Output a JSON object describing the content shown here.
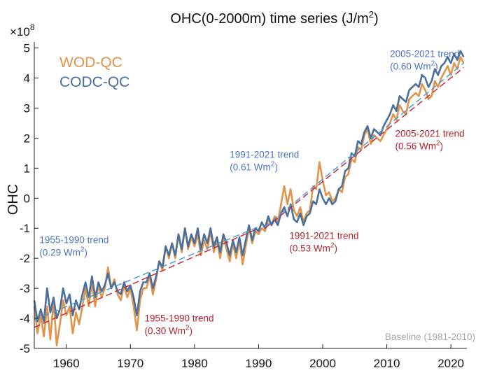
{
  "chart_data": {
    "type": "line",
    "title": "OHC(0-2000m) time series (J/m²)",
    "title_main": "OHC(0-2000m) time series (J/m",
    "title_sup": "2",
    "title_close": ")",
    "ylabel": "OHC",
    "xlabel": "",
    "y_scale_prefix": "×10",
    "y_scale_exp": "8",
    "xlim": [
      1955,
      2022.5
    ],
    "ylim": [
      -5,
      5.2
    ],
    "x_ticks": [
      1960,
      1970,
      1980,
      1990,
      2000,
      2010,
      2020
    ],
    "y_ticks": [
      -5,
      -4,
      -3,
      -2,
      -1,
      0,
      1,
      2,
      3,
      4,
      5
    ],
    "grid": false,
    "legend_position": "top-left",
    "baseline_note": "Baseline (1981-2010)",
    "series": [
      {
        "name": "WOD-QC",
        "color": "#e0954a",
        "points": [
          [
            1955.0,
            -3.6
          ],
          [
            1955.5,
            -4.5
          ],
          [
            1956.0,
            -3.9
          ],
          [
            1956.5,
            -4.6
          ],
          [
            1957.0,
            -3.6
          ],
          [
            1957.5,
            -4.7
          ],
          [
            1958.0,
            -3.4
          ],
          [
            1958.5,
            -4.9
          ],
          [
            1959.0,
            -4.2
          ],
          [
            1959.5,
            -3.4
          ],
          [
            1960.0,
            -3.9
          ],
          [
            1960.5,
            -3.6
          ],
          [
            1961.0,
            -4.5
          ],
          [
            1961.5,
            -3.8
          ],
          [
            1962.0,
            -4.2
          ],
          [
            1962.5,
            -3.6
          ],
          [
            1963.0,
            -3.0
          ],
          [
            1963.5,
            -3.6
          ],
          [
            1964.0,
            -2.8
          ],
          [
            1964.5,
            -3.6
          ],
          [
            1965.0,
            -2.9
          ],
          [
            1965.5,
            -3.3
          ],
          [
            1966.0,
            -3.0
          ],
          [
            1966.5,
            -2.3
          ],
          [
            1967.0,
            -3.0
          ],
          [
            1967.5,
            -2.7
          ],
          [
            1968.0,
            -3.2
          ],
          [
            1968.5,
            -3.4
          ],
          [
            1969.0,
            -2.9
          ],
          [
            1969.5,
            -3.3
          ],
          [
            1970.0,
            -3.0
          ],
          [
            1970.5,
            -3.6
          ],
          [
            1971.0,
            -4.4
          ],
          [
            1971.5,
            -3.4
          ],
          [
            1972.0,
            -3.0
          ],
          [
            1972.5,
            -3.0
          ],
          [
            1973.0,
            -2.6
          ],
          [
            1973.5,
            -3.2
          ],
          [
            1974.0,
            -2.7
          ],
          [
            1974.5,
            -2.1
          ],
          [
            1975.0,
            -2.4
          ],
          [
            1975.5,
            -1.6
          ],
          [
            1976.0,
            -2.0
          ],
          [
            1976.5,
            -1.5
          ],
          [
            1977.0,
            -2.0
          ],
          [
            1977.5,
            -1.2
          ],
          [
            1978.0,
            -1.8
          ],
          [
            1978.5,
            -1.0
          ],
          [
            1979.0,
            -1.7
          ],
          [
            1979.5,
            -1.3
          ],
          [
            1980.0,
            -1.6
          ],
          [
            1980.5,
            -1.2
          ],
          [
            1981.0,
            -1.9
          ],
          [
            1981.5,
            -1.4
          ],
          [
            1982.0,
            -1.7
          ],
          [
            1982.5,
            -1.1
          ],
          [
            1983.0,
            -1.8
          ],
          [
            1983.5,
            -1.4
          ],
          [
            1984.0,
            -2.0
          ],
          [
            1984.5,
            -1.3
          ],
          [
            1985.0,
            -1.7
          ],
          [
            1985.5,
            -2.1
          ],
          [
            1986.0,
            -1.5
          ],
          [
            1986.5,
            -2.0
          ],
          [
            1987.0,
            -1.4
          ],
          [
            1987.5,
            -2.2
          ],
          [
            1988.0,
            -1.6
          ],
          [
            1988.5,
            -1.0
          ],
          [
            1989.0,
            -1.5
          ],
          [
            1989.5,
            -1.1
          ],
          [
            1990.0,
            -1.2
          ],
          [
            1990.5,
            -1.0
          ],
          [
            1991.0,
            -1.1
          ],
          [
            1991.5,
            -0.7
          ],
          [
            1992.0,
            -0.9
          ],
          [
            1992.5,
            -0.6
          ],
          [
            1993.0,
            -0.8
          ],
          [
            1993.5,
            -0.2
          ],
          [
            1994.0,
            0.4
          ],
          [
            1994.5,
            -0.2
          ],
          [
            1995.0,
            0.3
          ],
          [
            1995.5,
            -0.4
          ],
          [
            1996.0,
            -0.6
          ],
          [
            1996.5,
            -0.3
          ],
          [
            1997.0,
            -0.8
          ],
          [
            1997.5,
            -0.5
          ],
          [
            1998.0,
            -0.4
          ],
          [
            1998.5,
            0.4
          ],
          [
            1999.0,
            0.3
          ],
          [
            1999.5,
            1.2
          ],
          [
            2000.0,
            0.6
          ],
          [
            2000.5,
            0.1
          ],
          [
            2001.0,
            0.2
          ],
          [
            2001.5,
            -0.1
          ],
          [
            2002.0,
            0.0
          ],
          [
            2002.5,
            0.3
          ],
          [
            2003.0,
            0.2
          ],
          [
            2003.5,
            0.7
          ],
          [
            2004.0,
            0.8
          ],
          [
            2004.5,
            1.3
          ],
          [
            2005.0,
            1.2
          ],
          [
            2005.5,
            1.7
          ],
          [
            2006.0,
            1.6
          ],
          [
            2006.5,
            2.1
          ],
          [
            2007.0,
            2.3
          ],
          [
            2007.5,
            1.8
          ],
          [
            2008.0,
            2.1
          ],
          [
            2008.5,
            2.0
          ],
          [
            2009.0,
            1.9
          ],
          [
            2009.5,
            2.1
          ],
          [
            2010.0,
            2.3
          ],
          [
            2010.5,
            2.5
          ],
          [
            2011.0,
            2.8
          ],
          [
            2011.5,
            2.6
          ],
          [
            2012.0,
            3.1
          ],
          [
            2012.5,
            2.9
          ],
          [
            2013.0,
            2.8
          ],
          [
            2013.5,
            3.3
          ],
          [
            2014.0,
            3.4
          ],
          [
            2014.5,
            3.5
          ],
          [
            2015.0,
            3.4
          ],
          [
            2015.5,
            3.8
          ],
          [
            2016.0,
            3.6
          ],
          [
            2016.5,
            3.3
          ],
          [
            2017.0,
            3.4
          ],
          [
            2017.5,
            3.9
          ],
          [
            2018.0,
            3.7
          ],
          [
            2018.5,
            4.0
          ],
          [
            2019.0,
            4.2
          ],
          [
            2019.5,
            4.4
          ],
          [
            2020.0,
            4.1
          ],
          [
            2020.5,
            4.5
          ],
          [
            2021.0,
            4.3
          ],
          [
            2021.5,
            4.7
          ],
          [
            2022.0,
            4.5
          ]
        ]
      },
      {
        "name": "CODC-QC",
        "color": "#4a6f9e",
        "points": [
          [
            1955.0,
            -3.4
          ],
          [
            1955.5,
            -4.1
          ],
          [
            1956.0,
            -3.7
          ],
          [
            1956.5,
            -4.1
          ],
          [
            1957.0,
            -3.0
          ],
          [
            1957.5,
            -3.8
          ],
          [
            1958.0,
            -3.3
          ],
          [
            1958.5,
            -4.0
          ],
          [
            1959.0,
            -3.7
          ],
          [
            1959.5,
            -3.0
          ],
          [
            1960.0,
            -3.5
          ],
          [
            1960.5,
            -3.2
          ],
          [
            1961.0,
            -3.9
          ],
          [
            1961.5,
            -3.4
          ],
          [
            1962.0,
            -3.7
          ],
          [
            1962.5,
            -3.2
          ],
          [
            1963.0,
            -2.8
          ],
          [
            1963.5,
            -3.3
          ],
          [
            1964.0,
            -2.6
          ],
          [
            1964.5,
            -3.3
          ],
          [
            1965.0,
            -2.8
          ],
          [
            1965.5,
            -3.1
          ],
          [
            1966.0,
            -2.9
          ],
          [
            1966.5,
            -2.5
          ],
          [
            1967.0,
            -3.0
          ],
          [
            1967.5,
            -2.8
          ],
          [
            1968.0,
            -3.1
          ],
          [
            1968.5,
            -3.2
          ],
          [
            1969.0,
            -2.8
          ],
          [
            1969.5,
            -3.1
          ],
          [
            1970.0,
            -2.9
          ],
          [
            1970.5,
            -3.3
          ],
          [
            1971.0,
            -3.9
          ],
          [
            1971.5,
            -3.1
          ],
          [
            1972.0,
            -2.8
          ],
          [
            1972.5,
            -2.8
          ],
          [
            1973.0,
            -2.5
          ],
          [
            1973.5,
            -3.0
          ],
          [
            1974.0,
            -2.6
          ],
          [
            1974.5,
            -2.1
          ],
          [
            1975.0,
            -2.3
          ],
          [
            1975.5,
            -1.6
          ],
          [
            1976.0,
            -1.9
          ],
          [
            1976.5,
            -1.5
          ],
          [
            1977.0,
            -1.9
          ],
          [
            1977.5,
            -1.2
          ],
          [
            1978.0,
            -1.7
          ],
          [
            1978.5,
            -1.0
          ],
          [
            1979.0,
            -1.6
          ],
          [
            1979.5,
            -1.2
          ],
          [
            1980.0,
            -1.5
          ],
          [
            1980.5,
            -1.0
          ],
          [
            1981.0,
            -1.7
          ],
          [
            1981.5,
            -1.2
          ],
          [
            1982.0,
            -1.5
          ],
          [
            1982.5,
            -1.0
          ],
          [
            1983.0,
            -1.6
          ],
          [
            1983.5,
            -1.3
          ],
          [
            1984.0,
            -1.8
          ],
          [
            1984.5,
            -1.2
          ],
          [
            1985.0,
            -1.5
          ],
          [
            1985.5,
            -1.9
          ],
          [
            1986.0,
            -1.4
          ],
          [
            1986.5,
            -1.8
          ],
          [
            1987.0,
            -1.3
          ],
          [
            1987.5,
            -1.9
          ],
          [
            1988.0,
            -1.4
          ],
          [
            1988.5,
            -0.9
          ],
          [
            1989.0,
            -1.4
          ],
          [
            1989.5,
            -1.0
          ],
          [
            1990.0,
            -1.1
          ],
          [
            1990.5,
            -0.8
          ],
          [
            1991.0,
            -1.0
          ],
          [
            1991.5,
            -0.6
          ],
          [
            1992.0,
            -0.9
          ],
          [
            1992.5,
            -0.7
          ],
          [
            1993.0,
            -0.9
          ],
          [
            1993.5,
            -0.5
          ],
          [
            1994.0,
            -0.3
          ],
          [
            1994.5,
            -0.6
          ],
          [
            1995.0,
            -0.2
          ],
          [
            1995.5,
            -0.7
          ],
          [
            1996.0,
            -0.8
          ],
          [
            1996.5,
            -0.5
          ],
          [
            1997.0,
            -0.9
          ],
          [
            1997.5,
            -0.6
          ],
          [
            1998.0,
            -0.5
          ],
          [
            1998.5,
            -0.1
          ],
          [
            1999.0,
            -0.2
          ],
          [
            1999.5,
            0.3
          ],
          [
            2000.0,
            0.0
          ],
          [
            2000.5,
            -0.2
          ],
          [
            2001.0,
            0.0
          ],
          [
            2001.5,
            -0.2
          ],
          [
            2002.0,
            -0.1
          ],
          [
            2002.5,
            0.3
          ],
          [
            2003.0,
            0.4
          ],
          [
            2003.5,
            0.9
          ],
          [
            2004.0,
            1.0
          ],
          [
            2004.5,
            1.5
          ],
          [
            2005.0,
            1.4
          ],
          [
            2005.5,
            1.9
          ],
          [
            2006.0,
            1.8
          ],
          [
            2006.5,
            2.2
          ],
          [
            2007.0,
            2.4
          ],
          [
            2007.5,
            2.0
          ],
          [
            2008.0,
            2.3
          ],
          [
            2008.5,
            2.2
          ],
          [
            2009.0,
            2.1
          ],
          [
            2009.5,
            2.4
          ],
          [
            2010.0,
            2.6
          ],
          [
            2010.5,
            2.8
          ],
          [
            2011.0,
            3.1
          ],
          [
            2011.5,
            2.9
          ],
          [
            2012.0,
            3.4
          ],
          [
            2012.5,
            3.3
          ],
          [
            2013.0,
            3.2
          ],
          [
            2013.5,
            3.6
          ],
          [
            2014.0,
            3.7
          ],
          [
            2014.5,
            3.8
          ],
          [
            2015.0,
            3.7
          ],
          [
            2015.5,
            4.1
          ],
          [
            2016.0,
            4.0
          ],
          [
            2016.5,
            3.7
          ],
          [
            2017.0,
            3.9
          ],
          [
            2017.5,
            4.3
          ],
          [
            2018.0,
            4.1
          ],
          [
            2018.5,
            4.4
          ],
          [
            2019.0,
            4.5
          ],
          [
            2019.5,
            4.7
          ],
          [
            2020.0,
            4.5
          ],
          [
            2020.5,
            4.8
          ],
          [
            2021.0,
            4.6
          ],
          [
            2021.5,
            4.9
          ],
          [
            2022.0,
            4.7
          ]
        ]
      }
    ],
    "trend_lines": [
      {
        "series": "CODC-QC",
        "color": "#4a9fd4",
        "start": [
          1955,
          -4.05
        ],
        "end": [
          1990,
          -0.95
        ]
      },
      {
        "series": "WOD-QC",
        "color": "#c8283c",
        "start": [
          1955,
          -4.3
        ],
        "end": [
          1990,
          -1.0
        ]
      },
      {
        "series": "CODC-QC",
        "color": "#4a9fd4",
        "start": [
          1991,
          -0.95
        ],
        "end": [
          2022,
          4.5
        ]
      },
      {
        "series": "WOD-QC",
        "color": "#c8283c",
        "start": [
          1991,
          -1.0
        ],
        "end": [
          2022,
          4.35
        ]
      }
    ],
    "annotations": [
      {
        "line1": "1955-1990 trend",
        "line2_pre": "(0.29 Wm",
        "line2_sup": "2",
        "line2_post": ")",
        "color": "#4a74c4",
        "x": 1955.8,
        "y": -1.5
      },
      {
        "line1": "1991-2021 trend",
        "line2_pre": "(0.61 Wm",
        "line2_sup": "2",
        "line2_post": ")",
        "color": "#4a74c4",
        "x": 1985.5,
        "y": 1.35
      },
      {
        "line1": "2005-2021 trend",
        "line2_pre": "(0.60 Wm",
        "line2_sup": "2",
        "line2_post": ")",
        "color": "#4a74c4",
        "x": 2010.5,
        "y": 4.7
      },
      {
        "line1": "1955-1990 trend",
        "line2_pre": "(0.30 Wm",
        "line2_sup": "2",
        "line2_post": ")",
        "color": "#b5202e",
        "x": 1972.2,
        "y": -4.1
      },
      {
        "line1": "1991-2021 trend",
        "line2_pre": "(0.53 Wm",
        "line2_sup": "2",
        "line2_post": ")",
        "color": "#b5202e",
        "x": 1994.8,
        "y": -1.35
      },
      {
        "line1": "2005-2021 trend",
        "line2_pre": "(0.56 Wm",
        "line2_sup": "2",
        "line2_post": ")",
        "color": "#b5202e",
        "x": 2011.3,
        "y": 2.05
      }
    ]
  }
}
